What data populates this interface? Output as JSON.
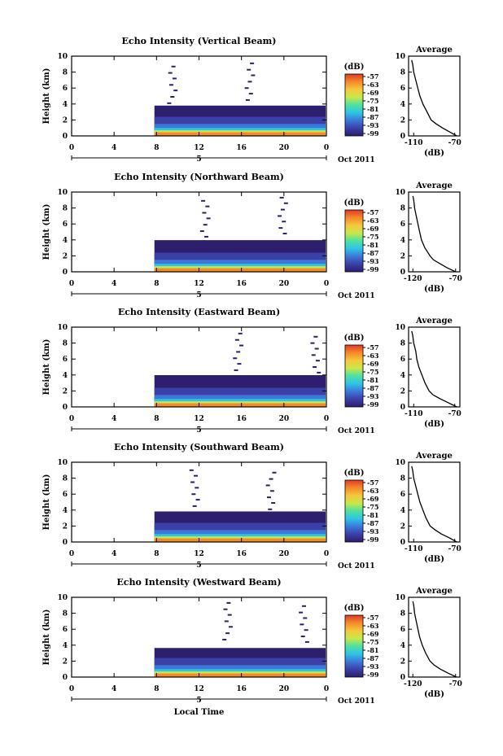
{
  "figure": {
    "xlabel": "Local Time",
    "date_label": "Oct 2011",
    "x_ticks": [
      "0",
      "4",
      "8",
      "12",
      "16",
      "20",
      "0"
    ],
    "bar_marker": "5",
    "ylabel": "Height (km)",
    "y_ticks": [
      "0",
      "2",
      "4",
      "6",
      "8",
      "10"
    ],
    "colorbar_unit": "(dB)",
    "colorbar_ticks": [
      "-57",
      "-63",
      "-69",
      "-75",
      "-81",
      "-87",
      "-93",
      "-99"
    ],
    "colors": [
      "#2d1e6e",
      "#3b3fa6",
      "#3c78d8",
      "#2ec4e6",
      "#4fe0a0",
      "#c8e84a",
      "#f5c83c",
      "#f58a2a",
      "#e03a2a"
    ],
    "profile_title": "Average",
    "profile_xlabel": "(dB)"
  },
  "panels": [
    {
      "title": "Echo Intensity (Vertical Beam)",
      "profile_ticks": [
        "-110",
        "-70"
      ]
    },
    {
      "title": "Echo Intensity (Northward Beam)",
      "profile_ticks": [
        "-120",
        "-70"
      ]
    },
    {
      "title": "Echo Intensity (Eastward Beam)",
      "profile_ticks": [
        "-110",
        "-70"
      ]
    },
    {
      "title": "Echo Intensity (Southward Beam)",
      "profile_ticks": [
        "-110",
        "-70"
      ]
    },
    {
      "title": "Echo Intensity (Westward Beam)",
      "profile_ticks": [
        "-120",
        "-70"
      ]
    }
  ],
  "chart_data": {
    "type": "heatmap",
    "x_unit": "Local Time (h)",
    "xlim": [
      0,
      24
    ],
    "ylim": [
      0,
      10
    ],
    "data_start_hour": 7.8,
    "heatmap_layers_km": [
      {
        "level": "-99",
        "top": 3.8
      },
      {
        "level": "-93",
        "top": 2.4
      },
      {
        "level": "-87",
        "top": 1.5
      },
      {
        "level": "-81",
        "top": 1.0
      },
      {
        "level": "-75",
        "top": 0.7
      },
      {
        "level": "-63",
        "top": 0.45
      }
    ],
    "profiles": [
      {
        "name": "Vertical",
        "xlim": [
          -115,
          -65
        ],
        "height": [
          0,
          0.5,
          1,
          1.5,
          2,
          3,
          4,
          5,
          6,
          7,
          8,
          9,
          9.5
        ],
        "value": [
          -68,
          -75,
          -82,
          -88,
          -93,
          -97,
          -101,
          -104,
          -106,
          -108,
          -110,
          -111,
          -112
        ]
      },
      {
        "name": "Northward",
        "xlim": [
          -125,
          -65
        ],
        "height": [
          0,
          0.5,
          1,
          1.5,
          2,
          3,
          4,
          5,
          6,
          7,
          8,
          9,
          9.5
        ],
        "value": [
          -70,
          -80,
          -88,
          -96,
          -100,
          -106,
          -110,
          -112,
          -114,
          -116,
          -118,
          -119,
          -120
        ]
      },
      {
        "name": "Eastward",
        "xlim": [
          -115,
          -65
        ],
        "height": [
          0,
          0.5,
          1,
          1.5,
          2,
          3,
          4,
          5,
          6,
          7,
          8,
          9,
          9.5
        ],
        "value": [
          -68,
          -76,
          -84,
          -91,
          -95,
          -99,
          -102,
          -105,
          -107,
          -108,
          -110,
          -111,
          -112
        ]
      },
      {
        "name": "Southward",
        "xlim": [
          -115,
          -65
        ],
        "height": [
          0,
          0.5,
          1,
          1.5,
          2,
          3,
          4,
          5,
          6,
          7,
          8,
          9,
          9.5
        ],
        "value": [
          -68,
          -75,
          -83,
          -89,
          -94,
          -98,
          -101,
          -104,
          -106,
          -108,
          -110,
          -111,
          -112
        ]
      },
      {
        "name": "Westward",
        "xlim": [
          -125,
          -65
        ],
        "height": [
          0,
          0.5,
          1,
          1.5,
          2,
          3,
          4,
          5,
          6,
          7,
          8,
          9,
          9.5
        ],
        "value": [
          -69,
          -79,
          -88,
          -95,
          -100,
          -105,
          -109,
          -112,
          -114,
          -116,
          -118,
          -119,
          -120
        ]
      }
    ]
  }
}
